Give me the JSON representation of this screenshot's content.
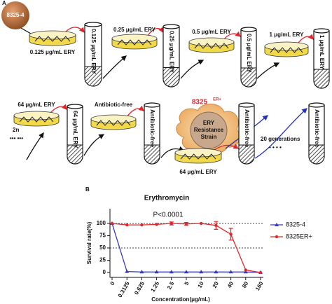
{
  "panel_labels": [
    "A",
    "B"
  ],
  "panel_a": {
    "source": "8325-4",
    "steps": [
      {
        "dish": "0.125 μg/mL ERY",
        "tube": "0.125 μg/mL ERY"
      },
      {
        "dish": "0.25 μg/mL ERY",
        "tube": "0.25 μg/mL ERY"
      },
      {
        "dish": "0.5 μg/mL ERY",
        "tube": "0.5 μg/mL ERY"
      },
      {
        "dish": "1 μg/mL ERY",
        "tube": "1 μg/mL ERY"
      },
      {
        "dish": "64 μg/mL ERY",
        "tube": "64 μg/mL ERY"
      },
      {
        "dish": "Antibiotic-free",
        "tube": "Antibiotic-free"
      }
    ],
    "passages": "2n",
    "dots": "••• •••",
    "strain": {
      "name": "8325",
      "superscript": "ER+",
      "description": [
        "ERY",
        "Resistance",
        "Strain"
      ]
    },
    "final_dish": "64 μg/mL  ERY",
    "final_tube": "Antibiotic-free",
    "generations": "20 generations",
    "generation_dots": "• • • •",
    "last_tube": "Antibiotic-free"
  },
  "chart_data": {
    "type": "line",
    "title": "Erythromycin",
    "annotation": "P<0.0001",
    "x_label": "Concentration(μg/mL)",
    "y_label": "Survival rate(%)",
    "categories": [
      "0",
      "0.3125",
      "0.625",
      "1.25",
      "2.5",
      "5",
      "10",
      "20",
      "40",
      "80",
      "160"
    ],
    "series": [
      {
        "name": "8325-4",
        "color": "#3a3ab8",
        "marker": "triangle",
        "values": [
          100,
          2,
          1,
          1,
          1,
          1,
          1,
          1,
          1,
          1,
          0
        ]
      },
      {
        "name": "8325ER+",
        "color": "#e0262b",
        "marker": "circle",
        "values": [
          100,
          97,
          97,
          98,
          100,
          99,
          100,
          96,
          78,
          5,
          0
        ],
        "errors": [
          null,
          null,
          null,
          null,
          3,
          3,
          null,
          8,
          12,
          null,
          null
        ]
      }
    ],
    "ylim": [
      -10,
      130
    ],
    "yticks": [
      0,
      25,
      50,
      75,
      100
    ],
    "reference_lines": [
      100,
      50
    ],
    "legend": "right"
  }
}
